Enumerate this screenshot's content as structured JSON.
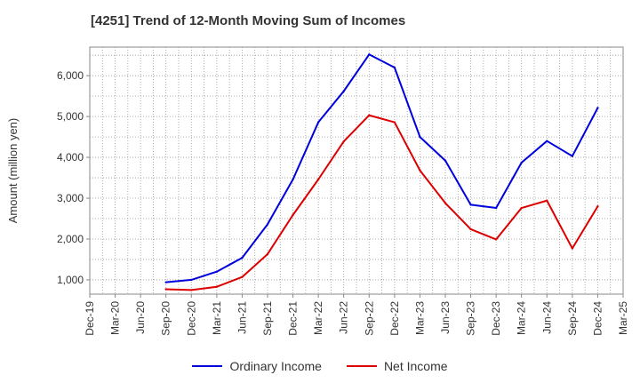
{
  "chart_data": {
    "type": "line",
    "title": "[4251]  Trend of 12-Month Moving Sum of Incomes",
    "xlabel": "",
    "ylabel": "Amount (million yen)",
    "ylim": [
      650,
      6700
    ],
    "yticks": [
      1000,
      2000,
      3000,
      4000,
      5000,
      6000
    ],
    "ytick_labels": [
      "1,000",
      "2,000",
      "3,000",
      "4,000",
      "5,000",
      "6,000"
    ],
    "categories": [
      "Dec-19",
      "Mar-20",
      "Jun-20",
      "Sep-20",
      "Dec-20",
      "Mar-21",
      "Jun-21",
      "Sep-21",
      "Dec-21",
      "Mar-22",
      "Jun-22",
      "Sep-22",
      "Dec-22",
      "Mar-23",
      "Jun-23",
      "Sep-23",
      "Dec-23",
      "Mar-24",
      "Jun-24",
      "Sep-24",
      "Dec-24",
      "Mar-25"
    ],
    "grid": true,
    "legend_position": "bottom-center",
    "series": [
      {
        "name": "Ordinary Income",
        "color": "#0000dd",
        "values": [
          null,
          null,
          null,
          940,
          1000,
          1200,
          1540,
          2360,
          3460,
          4860,
          5620,
          6520,
          6200,
          4500,
          3920,
          2840,
          2760,
          3870,
          4400,
          4030,
          5210,
          null
        ]
      },
      {
        "name": "Net Income",
        "color": "#dd0000",
        "values": [
          null,
          null,
          null,
          770,
          750,
          830,
          1070,
          1630,
          2590,
          3460,
          4390,
          5030,
          4860,
          3680,
          2880,
          2240,
          1990,
          2760,
          2940,
          1770,
          2800,
          null
        ]
      }
    ]
  }
}
